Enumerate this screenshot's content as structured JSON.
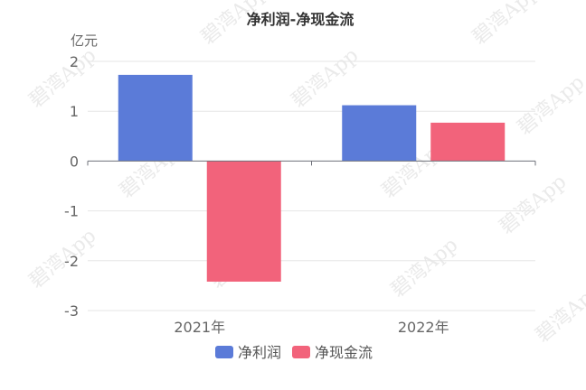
{
  "chart_data": {
    "type": "bar",
    "title": "净利润-净现金流",
    "unit_label": "亿元",
    "categories": [
      "2021年",
      "2022年"
    ],
    "series": [
      {
        "name": "净利润",
        "color": "#5b7bd8",
        "values": [
          1.73,
          1.12
        ]
      },
      {
        "name": "净现金流",
        "color": "#f2637b",
        "values": [
          -2.42,
          0.77
        ]
      }
    ],
    "ylim": [
      -3,
      2
    ],
    "yticks": [
      2,
      1,
      0,
      -1,
      -2,
      -3
    ],
    "grid": true,
    "legend_position": "bottom-center"
  },
  "watermark": "碧湾App"
}
